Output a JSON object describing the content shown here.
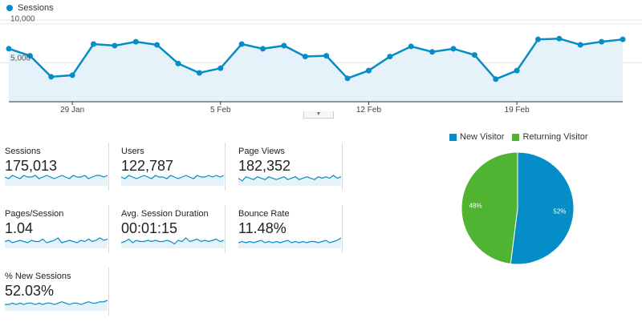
{
  "colors": {
    "accent": "#058dc7",
    "fill": "#e6f2fa",
    "green": "#50b432",
    "grid": "#e6e6e6"
  },
  "chart_data": [
    {
      "type": "line",
      "series": [
        {
          "name": "Sessions",
          "values": [
            6800,
            5900,
            3200,
            3400,
            7400,
            7200,
            7700,
            7300,
            4900,
            3700,
            4300,
            7400,
            6800,
            7200,
            5800,
            5900,
            3000,
            4000,
            5800,
            7100,
            6400,
            6800,
            6000,
            2900,
            4000,
            8000,
            8100,
            7300,
            7700,
            8000
          ]
        }
      ],
      "x_ticks": [
        "29 Jan",
        "5 Feb",
        "12 Feb",
        "19 Feb"
      ],
      "y_ticks": [
        "10,000",
        "5,000"
      ],
      "ylim": [
        0,
        11000
      ],
      "grid": true
    },
    {
      "type": "pie",
      "labels": [
        "New Visitor",
        "Returning Visitor"
      ],
      "values": [
        52,
        48
      ],
      "value_labels": [
        "52%",
        "48%"
      ],
      "colors": [
        "#058dc7",
        "#50b432"
      ],
      "legend": "top"
    }
  ],
  "metrics": [
    {
      "label": "Sessions",
      "value": "175,013",
      "spark": [
        5,
        4,
        6,
        5,
        4,
        6,
        5,
        5,
        6,
        4,
        5,
        6,
        5,
        4,
        5,
        6,
        5,
        4,
        6,
        5,
        5,
        6,
        4,
        5,
        6,
        6,
        5,
        6
      ]
    },
    {
      "label": "Users",
      "value": "122,787",
      "spark": [
        5,
        4,
        6,
        5,
        4,
        5,
        6,
        5,
        4,
        6,
        5,
        5,
        4,
        6,
        5,
        4,
        5,
        6,
        5,
        4,
        6,
        5,
        5,
        6,
        5,
        6,
        5,
        6
      ]
    },
    {
      "label": "Page Views",
      "value": "182,352",
      "spark": [
        5,
        3,
        6,
        5,
        4,
        6,
        5,
        4,
        6,
        5,
        4,
        5,
        6,
        4,
        5,
        6,
        4,
        5,
        6,
        5,
        4,
        6,
        5,
        6,
        5,
        7,
        5,
        6
      ]
    },
    {
      "label": "Pages/Session",
      "value": "1.04",
      "spark": [
        5,
        6,
        4,
        5,
        6,
        5,
        4,
        6,
        5,
        5,
        7,
        4,
        5,
        6,
        8,
        4,
        5,
        6,
        5,
        4,
        6,
        5,
        7,
        5,
        6,
        8,
        6,
        7
      ]
    },
    {
      "label": "Avg. Session Duration",
      "value": "00:01:15",
      "spark": [
        4,
        5,
        7,
        4,
        6,
        5,
        5,
        6,
        5,
        6,
        5,
        5,
        6,
        5,
        3,
        6,
        5,
        8,
        5,
        6,
        7,
        5,
        6,
        5,
        6,
        7,
        5,
        6
      ]
    },
    {
      "label": "Bounce Rate",
      "value": "11.48%",
      "spark": [
        4,
        5,
        4,
        5,
        4,
        5,
        6,
        4,
        5,
        4,
        5,
        4,
        5,
        6,
        4,
        5,
        4,
        5,
        4,
        5,
        5,
        4,
        5,
        6,
        4,
        5,
        6,
        8
      ]
    },
    {
      "label": "% New Sessions",
      "value": "52.03%",
      "spark": [
        4,
        4,
        5,
        4,
        5,
        4,
        5,
        5,
        4,
        5,
        4,
        5,
        5,
        4,
        5,
        6,
        5,
        4,
        5,
        5,
        4,
        5,
        6,
        5,
        5,
        6,
        6,
        7
      ]
    }
  ]
}
